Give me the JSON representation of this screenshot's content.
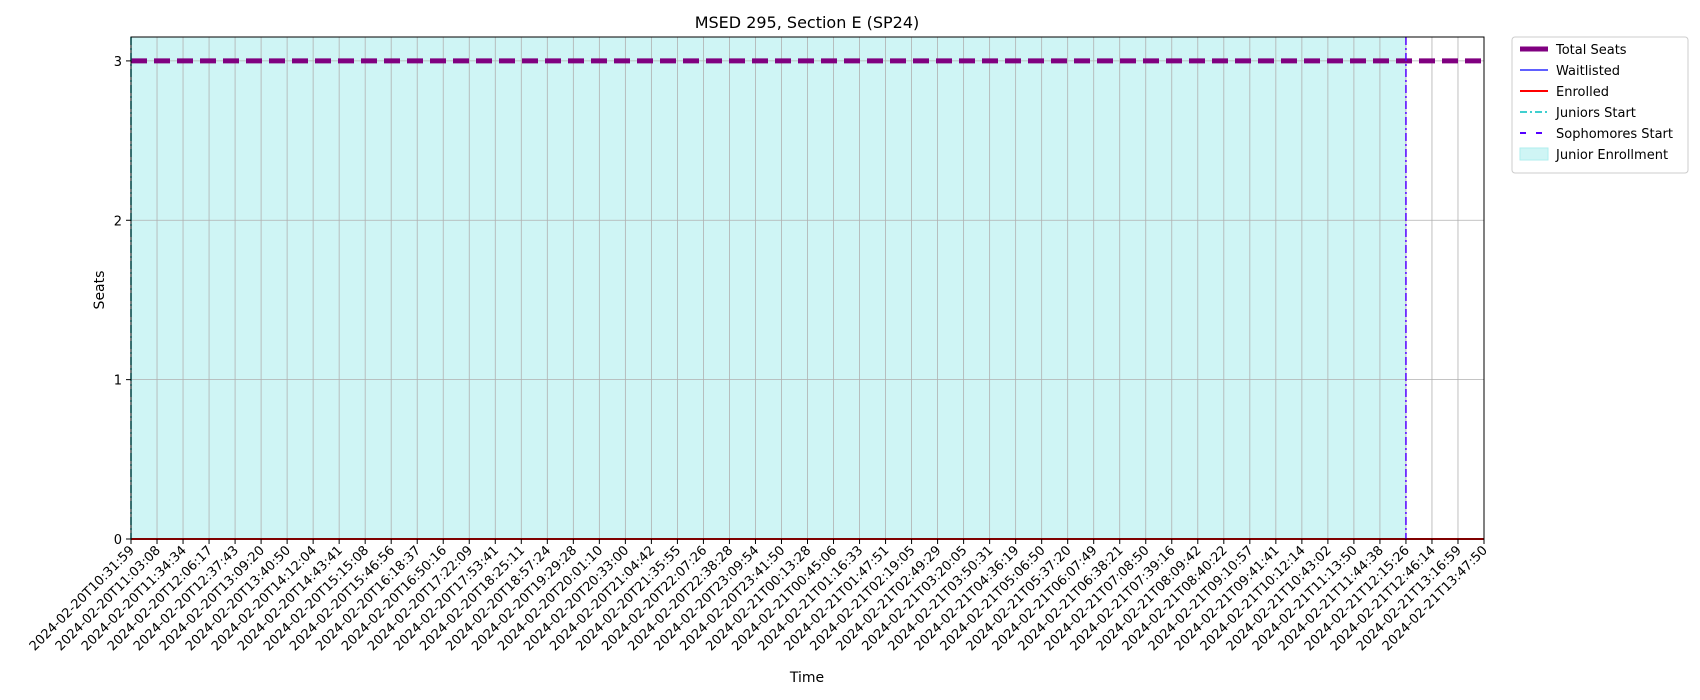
{
  "chart_data": {
    "type": "line",
    "title": "MSED 295, Section E (SP24)",
    "xlabel": "Time",
    "ylabel": "Seats",
    "ylim": [
      0,
      3.15
    ],
    "yticks": [
      0,
      1,
      2,
      3
    ],
    "grid": true,
    "legend_position": "outside-top-right",
    "x": [
      "2024-02-20T10:31:59",
      "2024-02-20T11:03:08",
      "2024-02-20T11:34:34",
      "2024-02-20T12:06:17",
      "2024-02-20T12:37:43",
      "2024-02-20T13:09:20",
      "2024-02-20T13:40:50",
      "2024-02-20T14:12:04",
      "2024-02-20T14:43:41",
      "2024-02-20T15:15:08",
      "2024-02-20T15:46:56",
      "2024-02-20T16:18:37",
      "2024-02-20T16:50:16",
      "2024-02-20T17:22:09",
      "2024-02-20T17:53:41",
      "2024-02-20T18:25:11",
      "2024-02-20T18:57:24",
      "2024-02-20T19:29:28",
      "2024-02-20T20:01:10",
      "2024-02-20T20:33:00",
      "2024-02-20T21:04:42",
      "2024-02-20T21:35:55",
      "2024-02-20T22:07:26",
      "2024-02-20T22:38:28",
      "2024-02-20T23:09:54",
      "2024-02-20T23:41:50",
      "2024-02-21T00:13:28",
      "2024-02-21T00:45:06",
      "2024-02-21T01:16:33",
      "2024-02-21T01:47:51",
      "2024-02-21T02:19:05",
      "2024-02-21T02:49:29",
      "2024-02-21T03:20:05",
      "2024-02-21T03:50:31",
      "2024-02-21T04:36:19",
      "2024-02-21T05:06:50",
      "2024-02-21T05:37:20",
      "2024-02-21T06:07:49",
      "2024-02-21T06:38:21",
      "2024-02-21T07:08:50",
      "2024-02-21T07:39:16",
      "2024-02-21T08:09:42",
      "2024-02-21T08:40:22",
      "2024-02-21T09:10:57",
      "2024-02-21T09:41:41",
      "2024-02-21T10:12:14",
      "2024-02-21T10:43:02",
      "2024-02-21T11:13:50",
      "2024-02-21T11:44:38",
      "2024-02-21T12:15:26",
      "2024-02-21T12:46:14",
      "2024-02-21T13:16:59",
      "2024-02-21T13:47:50"
    ],
    "series": [
      {
        "name": "Total Seats",
        "color": "#800080",
        "style": "dashed-thick",
        "constant_value": 3
      },
      {
        "name": "Waitlisted",
        "color": "#0000ff",
        "style": "solid-thin",
        "constant_value": 0
      },
      {
        "name": "Enrolled",
        "color": "#ff0000",
        "style": "solid",
        "constant_value": 0
      }
    ],
    "vertical_markers": [
      {
        "name": "Juniors Start",
        "color": "#00bfbf",
        "style": "dashdot",
        "x": "2024-02-20T10:31:59"
      },
      {
        "name": "Sophomores Start",
        "color": "#5500ff",
        "style": "dashdot",
        "x": "2024-02-21T12:15:26"
      }
    ],
    "shaded_regions": [
      {
        "name": "Junior Enrollment",
        "color": "#afeeee",
        "x_start": "2024-02-20T10:31:59",
        "x_end": "2024-02-21T12:15:26"
      }
    ]
  }
}
